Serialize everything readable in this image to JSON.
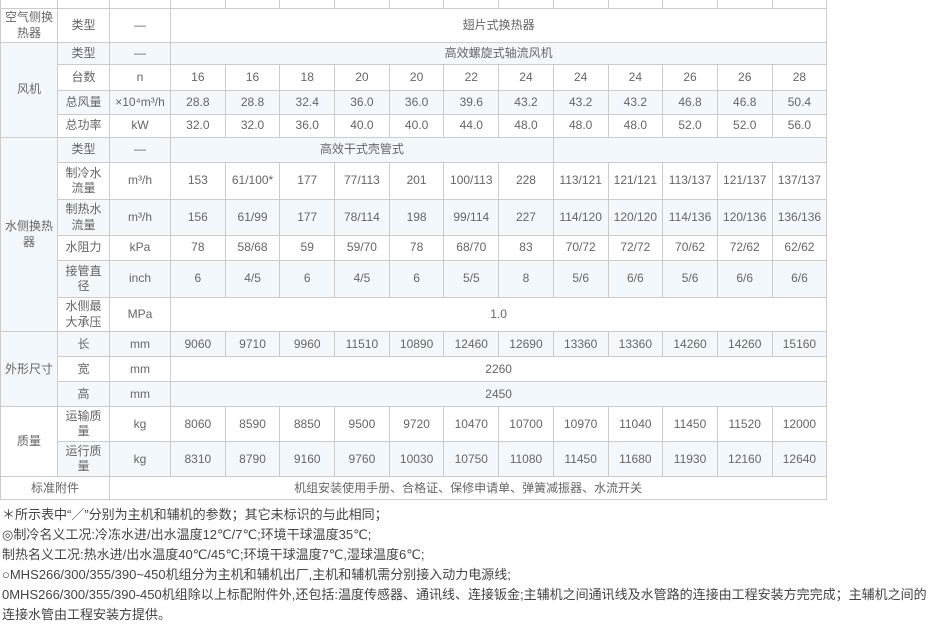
{
  "table": {
    "sections": [
      {
        "category": "空气侧换热器",
        "rows": [
          {
            "label": "类型",
            "unit": "—",
            "span": "翅片式换热器",
            "tint": false
          }
        ]
      },
      {
        "category": "风机",
        "rows": [
          {
            "label": "类型",
            "unit": "—",
            "span": "高效螺旋式轴流风机",
            "tint": true
          },
          {
            "label": "台数",
            "unit": "n",
            "tint": false,
            "values": [
              "16",
              "16",
              "18",
              "20",
              "20",
              "22",
              "24",
              "24",
              "24",
              "26",
              "26",
              "28"
            ]
          },
          {
            "label": "总风量",
            "unit": "×10⁴m³/h",
            "tint": true,
            "values": [
              "28.8",
              "28.8",
              "32.4",
              "36.0",
              "36.0",
              "39.6",
              "43.2",
              "43.2",
              "43.2",
              "46.8",
              "46.8",
              "50.4"
            ]
          },
          {
            "label": "总功率",
            "unit": "kW",
            "tint": false,
            "values": [
              "32.0",
              "32.0",
              "36.0",
              "40.0",
              "40.0",
              "44.0",
              "48.0",
              "48.0",
              "48.0",
              "52.0",
              "52.0",
              "56.0"
            ]
          }
        ]
      },
      {
        "category": "水侧换热器",
        "rows": [
          {
            "label": "类型",
            "unit": "—",
            "span": "高效干式壳管式",
            "span_cols": 7,
            "tail_cols": 5,
            "span_white": true,
            "tint": true
          },
          {
            "label": "制冷水流量",
            "unit": "m³/h",
            "tint": false,
            "values": [
              "153",
              "61/100*",
              "177",
              "77/113",
              "201",
              "100/113",
              "228",
              "113/121",
              "121/121",
              "113/137",
              "121/137",
              "137/137"
            ]
          },
          {
            "label": "制热水流量",
            "unit": "m³/h",
            "tint": true,
            "values": [
              "156",
              "61/99",
              "177",
              "78/114",
              "198",
              "99/114",
              "227",
              "114/120",
              "120/120",
              "114/136",
              "120/136",
              "136/136"
            ]
          },
          {
            "label": "水阻力",
            "unit": "kPa",
            "tint": false,
            "values": [
              "78",
              "58/68",
              "59",
              "59/70",
              "78",
              "68/70",
              "83",
              "70/72",
              "72/72",
              "70/62",
              "72/62",
              "62/62"
            ]
          },
          {
            "label": "接管直径",
            "unit": "inch",
            "tint": true,
            "values": [
              "6",
              "4/5",
              "6",
              "4/5",
              "6",
              "5/5",
              "8",
              "5/6",
              "6/6",
              "5/6",
              "6/6",
              "6/6"
            ]
          },
          {
            "label": "水侧最大承压",
            "unit": "MPa",
            "span": "1.0",
            "tint": false
          }
        ]
      },
      {
        "category": "外形尺寸",
        "rows": [
          {
            "label": "长",
            "unit": "mm",
            "tint": true,
            "values": [
              "9060",
              "9710",
              "9960",
              "11510",
              "10890",
              "12460",
              "12690",
              "13360",
              "13360",
              "14260",
              "14260",
              "15160"
            ]
          },
          {
            "label": "宽",
            "unit": "mm",
            "span": "2260",
            "tint": false
          },
          {
            "label": "高",
            "unit": "mm",
            "span": "2450",
            "tint": true,
            "span_white": true
          }
        ]
      },
      {
        "category": "质量",
        "rows": [
          {
            "label": "运输质量",
            "unit": "kg",
            "tint": false,
            "values": [
              "8060",
              "8590",
              "8850",
              "9500",
              "9720",
              "10470",
              "10700",
              "10970",
              "11040",
              "11450",
              "11520",
              "12000"
            ]
          },
          {
            "label": "运行质量",
            "unit": "kg",
            "tint": true,
            "values": [
              "8310",
              "8790",
              "9160",
              "9760",
              "10030",
              "10750",
              "11080",
              "11450",
              "11680",
              "11930",
              "12160",
              "12640"
            ]
          }
        ]
      },
      {
        "category": "标准附件",
        "content": "机组安装使用手册、合格证、保修申请单、弹簧减振器、水流开关",
        "tint": false
      }
    ]
  },
  "notes": [
    "＊所示表中“／”分别为主机和辅机的参数；其它未标识的与此相同；",
    "◎制冷名义工况:冷冻水进/出水温度12℃/7℃;环境干球温度35℃;",
    "制热名义工况:热水进/出水温度40℃/45℃;环境干球温度7℃,湿球温度6℃;",
    "○MHS266/300/355/390~450机组分为主机和辅机出厂,主机和辅机需分别接入动力电源线;",
    "0MHS266/300/355/390-450机组除以上标配附件外,还包括:温度传感器、通讯线、连接钣金;主辅机之间通讯线及水管路的连接由工程安装方完完成；主辅机之间的连接水管由工程安装方提供。"
  ]
}
